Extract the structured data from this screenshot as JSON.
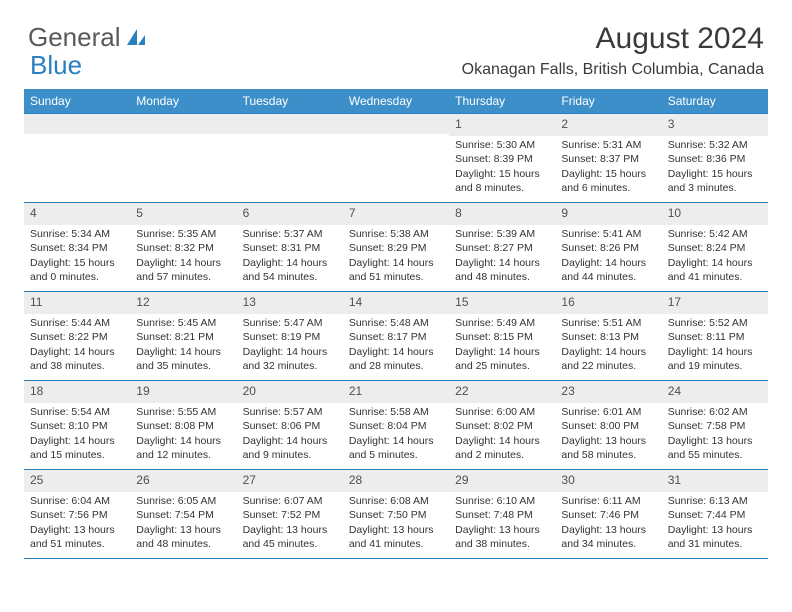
{
  "logo": {
    "text1": "General",
    "text2": "Blue"
  },
  "title": "August 2024",
  "location": "Okanagan Falls, British Columbia, Canada",
  "colors": {
    "header_bg": "#3d8fc9",
    "border": "#2a7fbf",
    "daynum_bg": "#ededed",
    "text": "#333333",
    "logo_blue": "#2a7fbf"
  },
  "day_labels": [
    "Sunday",
    "Monday",
    "Tuesday",
    "Wednesday",
    "Thursday",
    "Friday",
    "Saturday"
  ],
  "weeks": [
    [
      {
        "n": "",
        "sr": "",
        "ss": "",
        "dl": ""
      },
      {
        "n": "",
        "sr": "",
        "ss": "",
        "dl": ""
      },
      {
        "n": "",
        "sr": "",
        "ss": "",
        "dl": ""
      },
      {
        "n": "",
        "sr": "",
        "ss": "",
        "dl": ""
      },
      {
        "n": "1",
        "sr": "Sunrise: 5:30 AM",
        "ss": "Sunset: 8:39 PM",
        "dl": "Daylight: 15 hours and 8 minutes."
      },
      {
        "n": "2",
        "sr": "Sunrise: 5:31 AM",
        "ss": "Sunset: 8:37 PM",
        "dl": "Daylight: 15 hours and 6 minutes."
      },
      {
        "n": "3",
        "sr": "Sunrise: 5:32 AM",
        "ss": "Sunset: 8:36 PM",
        "dl": "Daylight: 15 hours and 3 minutes."
      }
    ],
    [
      {
        "n": "4",
        "sr": "Sunrise: 5:34 AM",
        "ss": "Sunset: 8:34 PM",
        "dl": "Daylight: 15 hours and 0 minutes."
      },
      {
        "n": "5",
        "sr": "Sunrise: 5:35 AM",
        "ss": "Sunset: 8:32 PM",
        "dl": "Daylight: 14 hours and 57 minutes."
      },
      {
        "n": "6",
        "sr": "Sunrise: 5:37 AM",
        "ss": "Sunset: 8:31 PM",
        "dl": "Daylight: 14 hours and 54 minutes."
      },
      {
        "n": "7",
        "sr": "Sunrise: 5:38 AM",
        "ss": "Sunset: 8:29 PM",
        "dl": "Daylight: 14 hours and 51 minutes."
      },
      {
        "n": "8",
        "sr": "Sunrise: 5:39 AM",
        "ss": "Sunset: 8:27 PM",
        "dl": "Daylight: 14 hours and 48 minutes."
      },
      {
        "n": "9",
        "sr": "Sunrise: 5:41 AM",
        "ss": "Sunset: 8:26 PM",
        "dl": "Daylight: 14 hours and 44 minutes."
      },
      {
        "n": "10",
        "sr": "Sunrise: 5:42 AM",
        "ss": "Sunset: 8:24 PM",
        "dl": "Daylight: 14 hours and 41 minutes."
      }
    ],
    [
      {
        "n": "11",
        "sr": "Sunrise: 5:44 AM",
        "ss": "Sunset: 8:22 PM",
        "dl": "Daylight: 14 hours and 38 minutes."
      },
      {
        "n": "12",
        "sr": "Sunrise: 5:45 AM",
        "ss": "Sunset: 8:21 PM",
        "dl": "Daylight: 14 hours and 35 minutes."
      },
      {
        "n": "13",
        "sr": "Sunrise: 5:47 AM",
        "ss": "Sunset: 8:19 PM",
        "dl": "Daylight: 14 hours and 32 minutes."
      },
      {
        "n": "14",
        "sr": "Sunrise: 5:48 AM",
        "ss": "Sunset: 8:17 PM",
        "dl": "Daylight: 14 hours and 28 minutes."
      },
      {
        "n": "15",
        "sr": "Sunrise: 5:49 AM",
        "ss": "Sunset: 8:15 PM",
        "dl": "Daylight: 14 hours and 25 minutes."
      },
      {
        "n": "16",
        "sr": "Sunrise: 5:51 AM",
        "ss": "Sunset: 8:13 PM",
        "dl": "Daylight: 14 hours and 22 minutes."
      },
      {
        "n": "17",
        "sr": "Sunrise: 5:52 AM",
        "ss": "Sunset: 8:11 PM",
        "dl": "Daylight: 14 hours and 19 minutes."
      }
    ],
    [
      {
        "n": "18",
        "sr": "Sunrise: 5:54 AM",
        "ss": "Sunset: 8:10 PM",
        "dl": "Daylight: 14 hours and 15 minutes."
      },
      {
        "n": "19",
        "sr": "Sunrise: 5:55 AM",
        "ss": "Sunset: 8:08 PM",
        "dl": "Daylight: 14 hours and 12 minutes."
      },
      {
        "n": "20",
        "sr": "Sunrise: 5:57 AM",
        "ss": "Sunset: 8:06 PM",
        "dl": "Daylight: 14 hours and 9 minutes."
      },
      {
        "n": "21",
        "sr": "Sunrise: 5:58 AM",
        "ss": "Sunset: 8:04 PM",
        "dl": "Daylight: 14 hours and 5 minutes."
      },
      {
        "n": "22",
        "sr": "Sunrise: 6:00 AM",
        "ss": "Sunset: 8:02 PM",
        "dl": "Daylight: 14 hours and 2 minutes."
      },
      {
        "n": "23",
        "sr": "Sunrise: 6:01 AM",
        "ss": "Sunset: 8:00 PM",
        "dl": "Daylight: 13 hours and 58 minutes."
      },
      {
        "n": "24",
        "sr": "Sunrise: 6:02 AM",
        "ss": "Sunset: 7:58 PM",
        "dl": "Daylight: 13 hours and 55 minutes."
      }
    ],
    [
      {
        "n": "25",
        "sr": "Sunrise: 6:04 AM",
        "ss": "Sunset: 7:56 PM",
        "dl": "Daylight: 13 hours and 51 minutes."
      },
      {
        "n": "26",
        "sr": "Sunrise: 6:05 AM",
        "ss": "Sunset: 7:54 PM",
        "dl": "Daylight: 13 hours and 48 minutes."
      },
      {
        "n": "27",
        "sr": "Sunrise: 6:07 AM",
        "ss": "Sunset: 7:52 PM",
        "dl": "Daylight: 13 hours and 45 minutes."
      },
      {
        "n": "28",
        "sr": "Sunrise: 6:08 AM",
        "ss": "Sunset: 7:50 PM",
        "dl": "Daylight: 13 hours and 41 minutes."
      },
      {
        "n": "29",
        "sr": "Sunrise: 6:10 AM",
        "ss": "Sunset: 7:48 PM",
        "dl": "Daylight: 13 hours and 38 minutes."
      },
      {
        "n": "30",
        "sr": "Sunrise: 6:11 AM",
        "ss": "Sunset: 7:46 PM",
        "dl": "Daylight: 13 hours and 34 minutes."
      },
      {
        "n": "31",
        "sr": "Sunrise: 6:13 AM",
        "ss": "Sunset: 7:44 PM",
        "dl": "Daylight: 13 hours and 31 minutes."
      }
    ]
  ]
}
